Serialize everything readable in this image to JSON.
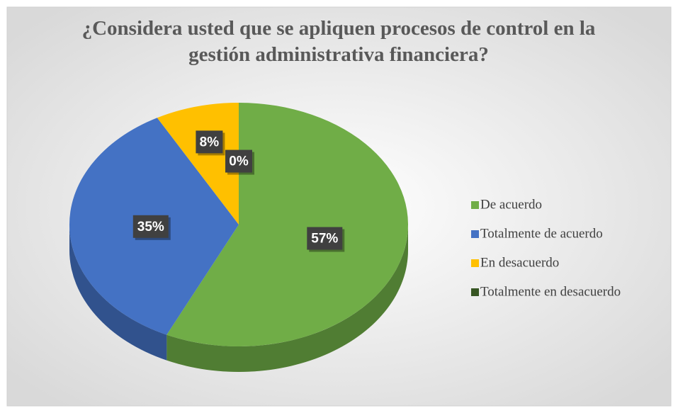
{
  "chart_data": {
    "type": "pie",
    "title": "¿Considera usted que se apliquen procesos de control en la gestión administrativa financiera?",
    "categories": [
      "De acuerdo",
      "Totalmente de acuerdo",
      "En desacuerdo",
      "Totalmente en desacuerdo"
    ],
    "values": [
      57,
      35,
      8,
      0
    ],
    "value_labels": [
      "57%",
      "35%",
      "8%",
      "0%"
    ],
    "colors": [
      "#70ad47",
      "#4472c4",
      "#ffc000",
      "#375623"
    ],
    "legend": "right"
  }
}
